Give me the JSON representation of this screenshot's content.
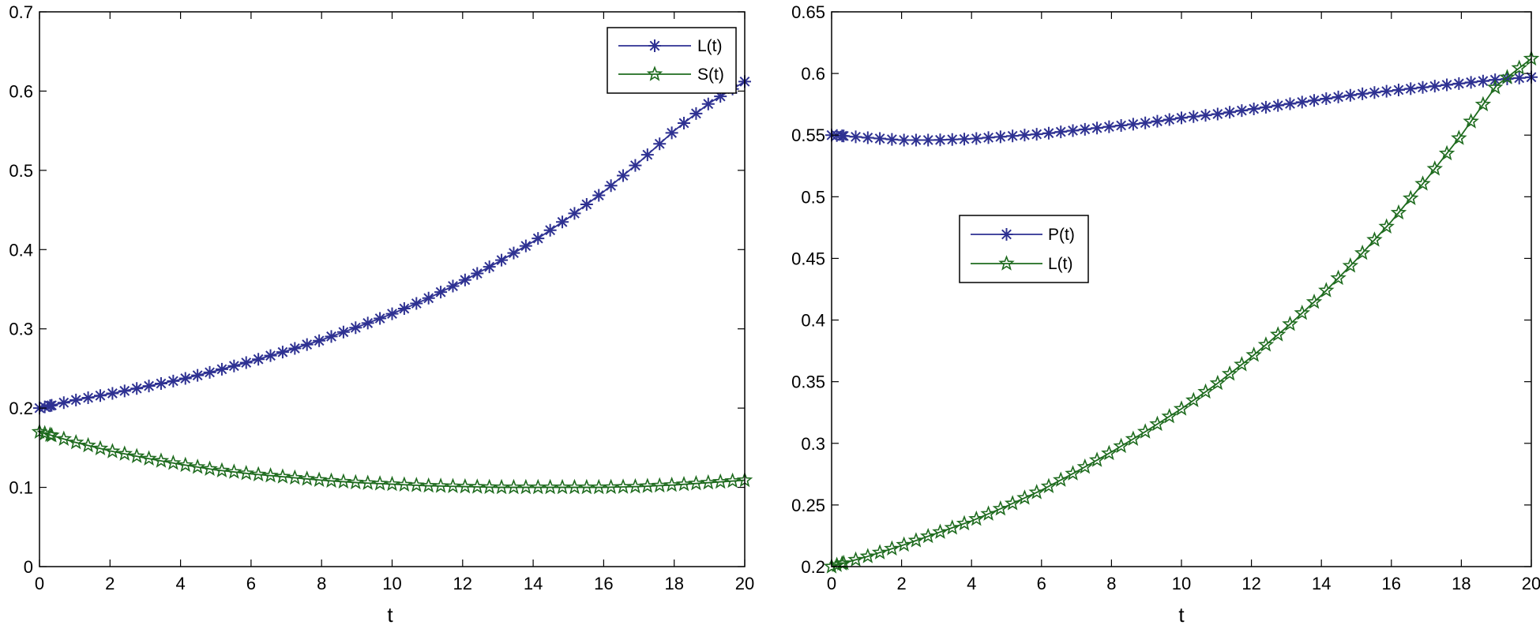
{
  "colors": {
    "blue": "#2e3192",
    "green": "#1e6b1e",
    "axis": "#000000",
    "background": "#ffffff"
  },
  "chart_data": [
    {
      "type": "line",
      "xlabel": "t",
      "ylabel": "",
      "xlim": [
        0,
        20
      ],
      "ylim": [
        0,
        0.7
      ],
      "xticks": [
        0,
        2,
        4,
        6,
        8,
        10,
        12,
        14,
        16,
        18,
        20
      ],
      "xtick_labels": [
        "0",
        "2",
        "4",
        "6",
        "8",
        "10",
        "12",
        "14",
        "16",
        "18",
        "20"
      ],
      "yticks": [
        0,
        0.1,
        0.2,
        0.3,
        0.4,
        0.5,
        0.6,
        0.7
      ],
      "ytick_labels": [
        "0",
        "0.1",
        "0.2",
        "0.3",
        "0.4",
        "0.5",
        "0.6",
        "0.7"
      ],
      "legend_position": "top-right",
      "series": [
        {
          "name": "L(t)",
          "label": "L(t)",
          "color": "#2e3192",
          "marker": "asterisk",
          "x": [
            0,
            1,
            2,
            3,
            4,
            5,
            6,
            7,
            8,
            9,
            10,
            11,
            12,
            13,
            14,
            15,
            16,
            17,
            18,
            19,
            20
          ],
          "values": [
            0.2,
            0.21,
            0.218,
            0.227,
            0.236,
            0.247,
            0.259,
            0.272,
            0.286,
            0.302,
            0.319,
            0.338,
            0.36,
            0.384,
            0.41,
            0.44,
            0.473,
            0.51,
            0.55,
            0.585,
            0.612
          ]
        },
        {
          "name": "S(t)",
          "label": "S(t)",
          "color": "#1e6b1e",
          "marker": "pentagram",
          "x": [
            0,
            1,
            2,
            3,
            4,
            5,
            6,
            7,
            8,
            9,
            10,
            11,
            12,
            13,
            14,
            15,
            16,
            17,
            18,
            19,
            20
          ],
          "values": [
            0.17,
            0.157,
            0.146,
            0.137,
            0.129,
            0.122,
            0.117,
            0.113,
            0.109,
            0.106,
            0.104,
            0.102,
            0.101,
            0.1,
            0.1,
            0.1,
            0.1,
            0.101,
            0.103,
            0.106,
            0.109
          ]
        }
      ]
    },
    {
      "type": "line",
      "xlabel": "t",
      "ylabel": "",
      "xlim": [
        0,
        20
      ],
      "ylim": [
        0.2,
        0.65
      ],
      "xticks": [
        0,
        2,
        4,
        6,
        8,
        10,
        12,
        14,
        16,
        18,
        20
      ],
      "xtick_labels": [
        "0",
        "2",
        "4",
        "6",
        "8",
        "10",
        "12",
        "14",
        "16",
        "18",
        "20"
      ],
      "yticks": [
        0.2,
        0.25,
        0.3,
        0.35,
        0.4,
        0.45,
        0.5,
        0.55,
        0.6,
        0.65
      ],
      "ytick_labels": [
        "0.2",
        "0.25",
        "0.3",
        "0.35",
        "0.4",
        "0.45",
        "0.5",
        "0.55",
        "0.6",
        "0.65"
      ],
      "legend_position": "center-left",
      "series": [
        {
          "name": "P(t)",
          "label": "P(t)",
          "color": "#2e3192",
          "marker": "asterisk",
          "x": [
            0,
            1,
            2,
            3,
            4,
            5,
            6,
            7,
            8,
            9,
            10,
            11,
            12,
            13,
            14,
            15,
            16,
            17,
            18,
            19,
            20
          ],
          "values": [
            0.55,
            0.548,
            0.546,
            0.546,
            0.547,
            0.549,
            0.551,
            0.554,
            0.557,
            0.56,
            0.564,
            0.567,
            0.571,
            0.575,
            0.579,
            0.583,
            0.586,
            0.589,
            0.592,
            0.595,
            0.597
          ]
        },
        {
          "name": "L(t)",
          "label": "L(t)",
          "color": "#1e6b1e",
          "marker": "pentagram",
          "x": [
            0,
            1,
            2,
            3,
            4,
            5,
            6,
            7,
            8,
            9,
            10,
            11,
            12,
            13,
            14,
            15,
            16,
            17,
            18,
            19,
            20
          ],
          "values": [
            0.2,
            0.208,
            0.217,
            0.227,
            0.237,
            0.249,
            0.262,
            0.277,
            0.293,
            0.31,
            0.328,
            0.348,
            0.37,
            0.394,
            0.42,
            0.449,
            0.48,
            0.514,
            0.55,
            0.59,
            0.612
          ]
        }
      ]
    }
  ]
}
